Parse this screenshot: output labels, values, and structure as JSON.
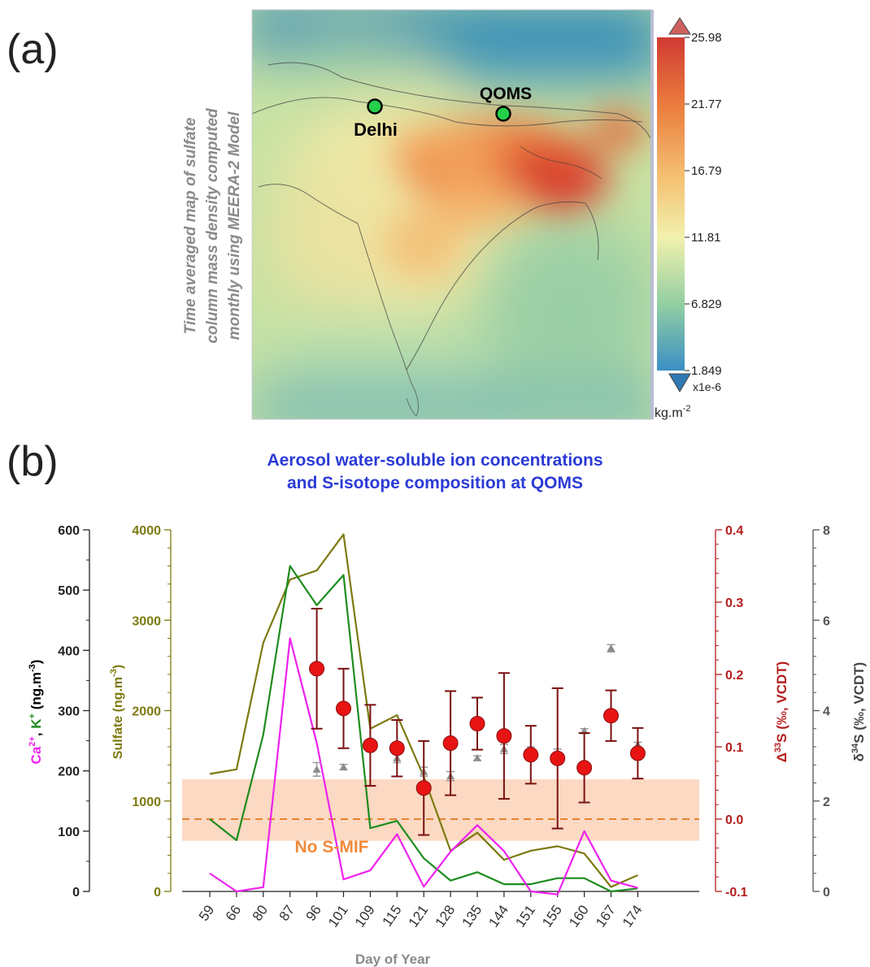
{
  "panel_a": {
    "letter": "(a)",
    "side_caption": [
      "Time averaged map of sulfate",
      "column mass density computed",
      "monthly using MEERA-2 Model"
    ],
    "site_labels": {
      "delhi": "Delhi",
      "qoms": "QOMS"
    },
    "colorbar": {
      "ticks": [
        "25.98",
        "21.77",
        "16.79",
        "11.81",
        "6.829",
        "1.849"
      ],
      "multiplier": "x1e-6",
      "unit_base": "kg.m",
      "unit_exp": "-2",
      "colors": [
        "#d03a33",
        "#ea7b3d",
        "#f4c072",
        "#f2f1ad",
        "#93cfa2",
        "#3b8fc4"
      ]
    }
  },
  "panel_b": {
    "letter": "(b)",
    "title_line1": "Aerosol water-soluble ion concentrations",
    "title_line2": "and S-isotope composition at QOMS",
    "shade_label": "No S-MIF"
  },
  "chart_data": {
    "type": "line",
    "title": "Aerosol water-soluble ion concentrations and S-isotope composition at QOMS",
    "xlabel": "Day of Year",
    "categories": [
      "59",
      "66",
      "80",
      "87",
      "96",
      "101",
      "109",
      "115",
      "121",
      "128",
      "135",
      "144",
      "151",
      "155",
      "160",
      "167",
      "174"
    ],
    "axes": {
      "ca_k": {
        "label_ca": "Ca",
        "label_ca_sup": "2+",
        "label_k": "K",
        "label_k_sup": "+",
        "label_unit": " (ng.m",
        "label_unit_exp": "-3",
        "label_close": ")",
        "ylim": [
          0,
          600
        ],
        "ticks": [
          "0",
          "100",
          "200",
          "300",
          "400",
          "500",
          "600"
        ],
        "color": "#000000"
      },
      "sulfate": {
        "label": "Sulfate (ng.m",
        "label_exp": "-3",
        "label_close": ")",
        "ylim": [
          0,
          4000
        ],
        "ticks": [
          "0",
          "1000",
          "2000",
          "3000",
          "4000"
        ],
        "color": "#7c7a10"
      },
      "d33s": {
        "label_pre": "Δ",
        "label_sup": "33",
        "label_main": "S (‰, VCDT)",
        "ylim": [
          -0.1,
          0.4
        ],
        "ticks": [
          "-0.1",
          "0.0",
          "0.1",
          "0.2",
          "0.3",
          "0.4"
        ],
        "color": "#b41e1e"
      },
      "d34s": {
        "label_pre": "δ",
        "label_sup": "34",
        "label_main": "S (‰, VCDT)",
        "ylim": [
          0,
          8
        ],
        "ticks": [
          "0",
          "2",
          "4",
          "6",
          "8"
        ],
        "color": "#444444"
      }
    },
    "series": [
      {
        "name": "Ca2+",
        "axis": "ca_k",
        "color": "#ee22ee",
        "values": [
          30,
          0,
          7,
          420,
          246,
          20,
          35,
          95,
          8,
          66,
          110,
          67,
          0,
          -5,
          100,
          18,
          6
        ]
      },
      {
        "name": "K+",
        "axis": "ca_k",
        "color": "#1e8c1e",
        "values": [
          120,
          85,
          260,
          540,
          475,
          525,
          105,
          117,
          55,
          18,
          32,
          12,
          12,
          22,
          22,
          0,
          5
        ]
      },
      {
        "name": "Sulfate",
        "axis": "sulfate",
        "color": "#7c7a10",
        "values": [
          1300,
          1350,
          2750,
          3450,
          3550,
          3950,
          1800,
          1950,
          1270,
          450,
          650,
          350,
          450,
          500,
          420,
          50,
          180
        ]
      },
      {
        "name": "Δ33S",
        "axis": "d33s",
        "color": "#e01414",
        "values": [
          null,
          null,
          null,
          null,
          0.208,
          0.153,
          0.102,
          0.098,
          0.043,
          0.105,
          0.132,
          0.115,
          0.089,
          0.084,
          0.071,
          0.143,
          0.091
        ],
        "errors": [
          null,
          null,
          null,
          null,
          0.083,
          0.055,
          0.056,
          0.039,
          0.065,
          0.072,
          0.036,
          0.087,
          0.04,
          0.097,
          0.048,
          0.035,
          0.035
        ]
      },
      {
        "name": "δ34S",
        "axis": "d34s",
        "color": "#888888",
        "values": [
          null,
          null,
          null,
          null,
          2.7,
          2.75,
          3.25,
          2.95,
          2.65,
          2.55,
          2.95,
          3.15,
          3.15,
          3.05,
          3.55,
          5.38,
          3.25
        ],
        "errors": [
          null,
          null,
          null,
          null,
          0.15,
          0.06,
          0.08,
          0.1,
          0.1,
          0.1,
          0.05,
          0.1,
          0.05,
          0.1,
          0.05,
          0.08,
          0.05
        ]
      }
    ],
    "reference_line": {
      "axis": "d33s",
      "value": 0.0,
      "color": "#e8822e"
    },
    "shaded_band": {
      "axis": "d33s",
      "range": [
        -0.03,
        0.055
      ],
      "color": "#fbd9c3"
    }
  }
}
